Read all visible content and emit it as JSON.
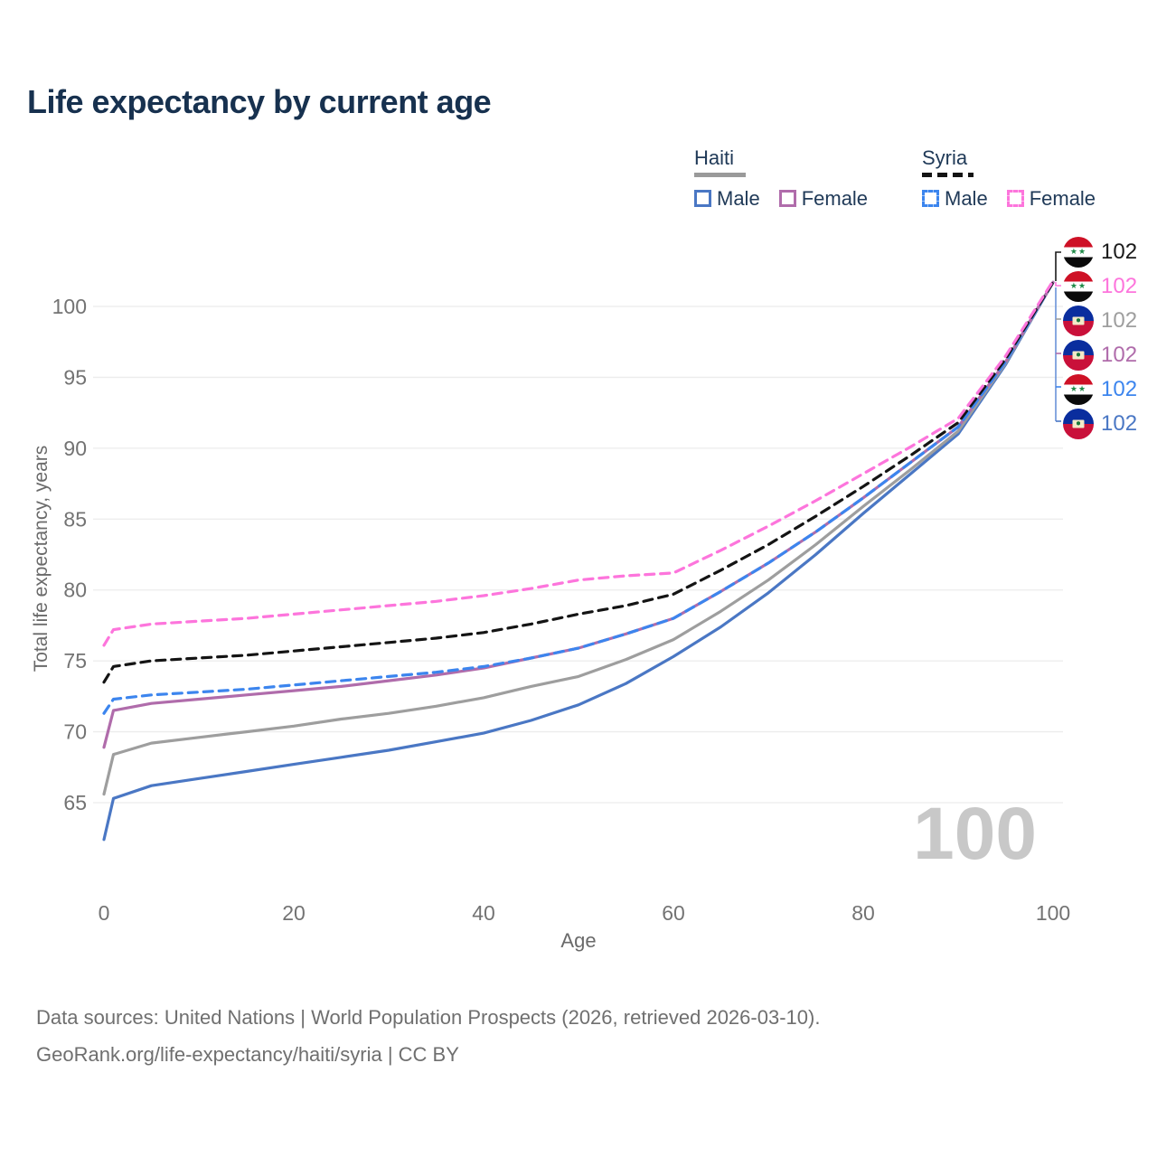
{
  "title": "Life expectancy by current age",
  "legend": {
    "groups": [
      {
        "label": "Haiti",
        "line_style": "solid",
        "underline_color": "#9a9a9a",
        "items": [
          {
            "label": "Male",
            "color": "#4a77c4"
          },
          {
            "label": "Female",
            "color": "#b06cab"
          }
        ]
      },
      {
        "label": "Syria",
        "line_style": "dashed",
        "underline_color": "#141414",
        "items": [
          {
            "label": "Male",
            "color": "#3c85ee"
          },
          {
            "label": "Female",
            "color": "#fd75dc"
          }
        ]
      }
    ]
  },
  "end_labels": [
    {
      "flag": "syria",
      "series": "Syria Total",
      "value": "102",
      "color": "#1a1a1a"
    },
    {
      "flag": "syria",
      "series": "Syria Female",
      "value": "102",
      "color": "#fd75dc"
    },
    {
      "flag": "haiti",
      "series": "Haiti Total",
      "value": "102",
      "color": "#9e9e9e"
    },
    {
      "flag": "haiti",
      "series": "Haiti Female",
      "value": "102",
      "color": "#b06cab"
    },
    {
      "flag": "syria",
      "series": "Syria Male",
      "value": "102",
      "color": "#3c85ee"
    },
    {
      "flag": "haiti",
      "series": "Haiti Male",
      "value": "102",
      "color": "#4a77c4"
    }
  ],
  "watermark": "100",
  "axes": {
    "x": {
      "title": "Age",
      "min": 0,
      "max": 100,
      "ticks": [
        0,
        20,
        40,
        60,
        80,
        100
      ]
    },
    "y": {
      "title": "Total life expectancy, years",
      "min": 65,
      "max": 100,
      "ticks": [
        65,
        70,
        75,
        80,
        85,
        90,
        95,
        100
      ]
    }
  },
  "chart_data": {
    "type": "line",
    "title": "Life expectancy by current age",
    "xlabel": "Age",
    "ylabel": "Total life expectancy, years",
    "xlim": [
      0,
      100
    ],
    "ylim": [
      65,
      100
    ],
    "grid": "horizontal",
    "legend_position": "top-right",
    "x": [
      0,
      1,
      5,
      10,
      15,
      20,
      25,
      30,
      35,
      40,
      45,
      50,
      55,
      60,
      65,
      70,
      75,
      80,
      85,
      90,
      95,
      100
    ],
    "series": [
      {
        "name": "Haiti Male",
        "country": "Haiti",
        "sex": "male",
        "color": "#4a77c4",
        "dashed": false,
        "values": [
          62.4,
          65.3,
          66.2,
          66.7,
          67.2,
          67.7,
          68.2,
          68.7,
          69.3,
          69.9,
          70.8,
          71.9,
          73.4,
          75.3,
          77.4,
          79.8,
          82.5,
          85.4,
          88.2,
          91.0,
          95.9,
          101.7
        ]
      },
      {
        "name": "Haiti Total",
        "country": "Haiti",
        "sex": "both",
        "color": "#9e9e9e",
        "dashed": false,
        "values": [
          65.6,
          68.4,
          69.2,
          69.6,
          70.0,
          70.4,
          70.9,
          71.3,
          71.8,
          72.4,
          73.2,
          73.9,
          75.1,
          76.5,
          78.5,
          80.7,
          83.2,
          85.9,
          88.5,
          91.2,
          96.0,
          101.7
        ]
      },
      {
        "name": "Haiti Female",
        "country": "Haiti",
        "sex": "female",
        "color": "#b06cab",
        "dashed": false,
        "values": [
          68.9,
          71.5,
          72.0,
          72.3,
          72.6,
          72.9,
          73.2,
          73.6,
          74.0,
          74.5,
          75.2,
          75.9,
          76.9,
          78.0,
          79.9,
          81.9,
          84.1,
          86.5,
          89.0,
          91.5,
          96.1,
          101.7
        ]
      },
      {
        "name": "Syria Male",
        "country": "Syria",
        "sex": "male",
        "color": "#3c85ee",
        "dashed": true,
        "values": [
          71.3,
          72.3,
          72.6,
          72.8,
          73.0,
          73.3,
          73.6,
          73.9,
          74.2,
          74.6,
          75.2,
          75.9,
          76.9,
          78.0,
          79.9,
          81.9,
          84.1,
          86.5,
          89.0,
          91.5,
          96.1,
          101.7
        ]
      },
      {
        "name": "Syria Total",
        "country": "Syria",
        "sex": "both",
        "color": "#141414",
        "dashed": true,
        "values": [
          73.5,
          74.6,
          75.0,
          75.2,
          75.4,
          75.7,
          76.0,
          76.3,
          76.6,
          77.0,
          77.6,
          78.3,
          78.9,
          79.7,
          81.4,
          83.2,
          85.2,
          87.3,
          89.5,
          91.8,
          96.3,
          101.7
        ]
      },
      {
        "name": "Syria Female",
        "country": "Syria",
        "sex": "female",
        "color": "#fd75dc",
        "dashed": true,
        "values": [
          76.1,
          77.2,
          77.6,
          77.8,
          78.0,
          78.3,
          78.6,
          78.9,
          79.2,
          79.6,
          80.1,
          80.7,
          81.0,
          81.2,
          82.8,
          84.5,
          86.3,
          88.2,
          90.1,
          92.1,
          96.5,
          101.8
        ]
      }
    ]
  },
  "footer": {
    "line1": "Data sources: United Nations | World Population Prospects (2026, retrieved 2026-03-10).",
    "line2": "GeoRank.org/life-expectancy/haiti/syria | CC BY"
  }
}
